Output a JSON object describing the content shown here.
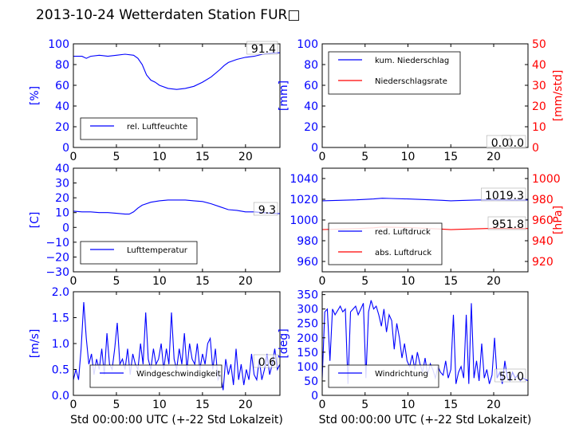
{
  "page": {
    "title": "2013-10-24 Wetterdaten Station FUR□"
  },
  "colors": {
    "primary": "#0000ff",
    "secondary": "#ff0000",
    "axis": "#000000"
  },
  "chart_data": [
    {
      "type": "line",
      "ylabel": "[%]",
      "xlim": [
        0,
        24
      ],
      "ylim": [
        0,
        100
      ],
      "xticks": [
        "0",
        "5",
        "10",
        "15",
        "20"
      ],
      "yticks": [
        "0",
        "20",
        "40",
        "60",
        "80",
        "100"
      ],
      "legend": {
        "position": "lower-left",
        "entries": [
          "rel. Luftfeuchte"
        ]
      },
      "last_value_label": "91.4",
      "series": [
        {
          "name": "rel. Luftfeuchte",
          "color": "#0000ff",
          "x": [
            0,
            1,
            1.5,
            2,
            3,
            4,
            5,
            6,
            7,
            7.5,
            8,
            8.5,
            9,
            9.5,
            10,
            11,
            12,
            13,
            14,
            15,
            16,
            17,
            17.5,
            18,
            19,
            20,
            21,
            22,
            23,
            24
          ],
          "y": [
            88,
            88,
            86,
            88,
            89,
            88,
            89,
            90,
            89,
            86,
            80,
            70,
            65,
            63,
            60,
            57,
            56,
            57,
            59,
            63,
            68,
            75,
            79,
            82,
            85,
            87,
            88,
            90,
            91,
            91.4
          ]
        }
      ]
    },
    {
      "type": "line",
      "ylabel": "[mm]",
      "y2label": "[mm/std]",
      "xlim": [
        0,
        24
      ],
      "ylim": [
        0,
        100
      ],
      "y2lim": [
        0,
        50
      ],
      "xticks": [
        "0",
        "5",
        "10",
        "15",
        "20"
      ],
      "yticks": [
        "0",
        "20",
        "40",
        "60",
        "80",
        "100"
      ],
      "y2ticks": [
        "0",
        "10",
        "20",
        "30",
        "40",
        "50"
      ],
      "legend": {
        "position": "upper-left",
        "entries": [
          "kum. Niederschlag",
          "Niederschlagsrate"
        ]
      },
      "last_value_label": "0.0",
      "last_value_label_2": "0.0",
      "series": [
        {
          "name": "kum. Niederschlag",
          "color": "#0000ff",
          "axis": "left",
          "x": [
            0,
            24
          ],
          "y": [
            0,
            0
          ]
        },
        {
          "name": "Niederschlagsrate",
          "color": "#ff0000",
          "axis": "right",
          "x": [
            0,
            24
          ],
          "y": [
            0,
            0
          ]
        }
      ]
    },
    {
      "type": "line",
      "ylabel": "[C]",
      "xlim": [
        0,
        24
      ],
      "ylim": [
        -30,
        40
      ],
      "xticks": [
        "0",
        "5",
        "10",
        "15",
        "20"
      ],
      "yticks": [
        "−30",
        "−20",
        "−10",
        "0",
        "10",
        "20",
        "30",
        "40"
      ],
      "legend": {
        "position": "lower-left",
        "entries": [
          "Lufttemperatur"
        ]
      },
      "last_value_label": "9.3",
      "series": [
        {
          "name": "Lufttemperatur",
          "color": "#0000ff",
          "x": [
            0,
            1,
            2,
            3,
            4,
            5,
            6,
            6.5,
            7,
            7.5,
            8,
            9,
            10,
            11,
            12,
            13,
            14,
            15,
            16,
            17,
            18,
            19,
            20,
            21,
            22,
            23,
            24
          ],
          "y": [
            11,
            10.5,
            10.5,
            10,
            10,
            9.5,
            9,
            9,
            10.5,
            13,
            15,
            17,
            18,
            18.5,
            18.5,
            18.5,
            18,
            17.5,
            16,
            14,
            12,
            11.5,
            10.5,
            10.5,
            10,
            9.5,
            9.3
          ]
        }
      ]
    },
    {
      "type": "line",
      "ylabel": "",
      "y2label": "[hPa]",
      "xlim": [
        0,
        24
      ],
      "ylim": [
        950,
        1050
      ],
      "y2lim": [
        910,
        1010
      ],
      "xticks": [
        "0",
        "5",
        "10",
        "15",
        "20"
      ],
      "yticks": [
        "960",
        "980",
        "1000",
        "1020",
        "1040"
      ],
      "y2ticks": [
        "920",
        "940",
        "960",
        "980",
        "1000"
      ],
      "legend": {
        "position": "lower-left",
        "entries": [
          "red. Luftdruck",
          "abs. Luftdruck"
        ]
      },
      "last_value_label": "1019.3",
      "last_value_label_2": "951.8",
      "series": [
        {
          "name": "red. Luftdruck",
          "color": "#0000ff",
          "axis": "left",
          "x": [
            0,
            2,
            4,
            6,
            7,
            8,
            10,
            12,
            14,
            15,
            16,
            18,
            20,
            22,
            24
          ],
          "y": [
            1018.5,
            1019,
            1019.5,
            1020.3,
            1021,
            1020.8,
            1020.3,
            1019.7,
            1019,
            1018.5,
            1018.8,
            1019.3,
            1019.5,
            1019.3,
            1019.3
          ]
        },
        {
          "name": "abs. Luftdruck",
          "color": "#ff0000",
          "axis": "right",
          "x": [
            0,
            2,
            4,
            6,
            7,
            8,
            10,
            12,
            14,
            15,
            16,
            18,
            20,
            22,
            24
          ],
          "y": [
            950.8,
            951.2,
            951.7,
            952.5,
            953.2,
            953,
            952.7,
            952,
            951.2,
            950.7,
            951,
            951.5,
            952,
            951.8,
            951.8
          ]
        }
      ]
    },
    {
      "type": "line",
      "ylabel": "[m/s]",
      "xlabel": "Std 00:00:00 UTC (+-22 Std Lokalzeit)",
      "xlim": [
        0,
        24
      ],
      "ylim": [
        0,
        2.0
      ],
      "xticks": [
        "0",
        "5",
        "10",
        "15",
        "20"
      ],
      "yticks": [
        "0.0",
        "0.5",
        "1.0",
        "1.5",
        "2.0"
      ],
      "legend": {
        "position": "lower-center",
        "entries": [
          "Windgeschwindigkeit"
        ]
      },
      "last_value_label": "0.6",
      "series": [
        {
          "name": "Windgeschwindigkeit",
          "color": "#0000ff",
          "x": [
            0,
            0.3,
            0.6,
            0.9,
            1.2,
            1.5,
            1.8,
            2.1,
            2.4,
            2.7,
            3,
            3.3,
            3.6,
            3.9,
            4.2,
            4.5,
            4.8,
            5.1,
            5.4,
            5.7,
            6,
            6.3,
            6.6,
            6.9,
            7.2,
            7.5,
            7.8,
            8.1,
            8.4,
            8.7,
            9,
            9.3,
            9.6,
            9.9,
            10.2,
            10.5,
            10.8,
            11.1,
            11.4,
            11.7,
            12,
            12.3,
            12.6,
            12.9,
            13.2,
            13.5,
            13.8,
            14.1,
            14.4,
            14.7,
            15,
            15.3,
            15.6,
            15.9,
            16.2,
            16.5,
            16.8,
            17.1,
            17.4,
            17.7,
            18,
            18.3,
            18.6,
            18.9,
            19.2,
            19.5,
            19.8,
            20.1,
            20.4,
            20.7,
            21,
            21.3,
            21.6,
            21.9,
            22.2,
            22.5,
            22.8,
            23.1,
            23.4,
            23.7,
            24
          ],
          "y": [
            0.3,
            0.5,
            0.3,
            0.9,
            1.8,
            1.1,
            0.6,
            0.8,
            0.4,
            0.7,
            0.5,
            0.9,
            0.4,
            1.2,
            0.6,
            0.5,
            0.9,
            1.4,
            0.6,
            0.7,
            0.5,
            0.9,
            0.4,
            0.8,
            0.6,
            0.5,
            1.0,
            0.6,
            1.6,
            0.7,
            0.5,
            0.9,
            0.6,
            0.7,
            1.0,
            0.5,
            0.9,
            0.6,
            1.6,
            0.7,
            0.5,
            0.9,
            0.6,
            1.2,
            0.5,
            1.0,
            0.7,
            0.6,
            1.0,
            0.5,
            0.8,
            0.6,
            1.0,
            1.1,
            0.5,
            0.9,
            0.3,
            0.4,
            0.1,
            0.7,
            0.4,
            0.6,
            0.2,
            0.9,
            0.3,
            0.6,
            0.2,
            0.5,
            0.3,
            0.8,
            0.4,
            0.3,
            0.7,
            0.3,
            0.5,
            0.8,
            0.4,
            0.6,
            0.9,
            0.5,
            0.6
          ]
        }
      ]
    },
    {
      "type": "line",
      "ylabel": "[deg]",
      "xlabel": "Std 00:00:00 UTC (+-22 Std Lokalzeit)",
      "xlim": [
        0,
        24
      ],
      "ylim": [
        0,
        360
      ],
      "xticks": [
        "0",
        "5",
        "10",
        "15",
        "20"
      ],
      "yticks": [
        "0",
        "50",
        "100",
        "150",
        "200",
        "250",
        "300",
        "350"
      ],
      "legend": {
        "position": "lower-left",
        "entries": [
          "Windrichtung"
        ]
      },
      "last_value_label": "51.0",
      "series": [
        {
          "name": "Windrichtung",
          "color": "#0000ff",
          "x": [
            0,
            0.3,
            0.6,
            0.9,
            1.2,
            1.5,
            1.8,
            2.1,
            2.4,
            2.7,
            3,
            3.3,
            3.6,
            3.9,
            4.2,
            4.5,
            4.8,
            5.1,
            5.4,
            5.7,
            6,
            6.3,
            6.6,
            6.9,
            7.2,
            7.5,
            7.8,
            8.1,
            8.4,
            8.7,
            9,
            9.3,
            9.6,
            9.9,
            10.2,
            10.5,
            10.8,
            11.1,
            11.4,
            11.7,
            12,
            12.3,
            12.6,
            12.9,
            13.2,
            13.5,
            13.8,
            14.1,
            14.4,
            14.7,
            15,
            15.3,
            15.6,
            15.9,
            16.2,
            16.5,
            16.8,
            17.1,
            17.4,
            17.7,
            18,
            18.3,
            18.6,
            18.9,
            19.2,
            19.5,
            19.8,
            20.1,
            20.4,
            20.7,
            21,
            21.3,
            21.6,
            21.9,
            22.2,
            22.5,
            22.8,
            23.1,
            23.4,
            23.7,
            24
          ],
          "y": [
            60,
            290,
            300,
            120,
            300,
            280,
            295,
            310,
            290,
            300,
            40,
            290,
            300,
            310,
            280,
            300,
            320,
            60,
            290,
            330,
            300,
            310,
            280,
            240,
            300,
            220,
            280,
            260,
            160,
            250,
            200,
            130,
            180,
            120,
            100,
            140,
            90,
            150,
            110,
            80,
            130,
            70,
            110,
            90,
            60,
            100,
            80,
            70,
            120,
            60,
            90,
            280,
            40,
            80,
            100,
            60,
            280,
            40,
            320,
            60,
            120,
            50,
            180,
            60,
            90,
            40,
            70,
            200,
            60,
            80,
            40,
            120,
            60,
            50,
            80,
            60,
            70,
            50,
            60,
            55,
            51
          ]
        }
      ]
    }
  ]
}
